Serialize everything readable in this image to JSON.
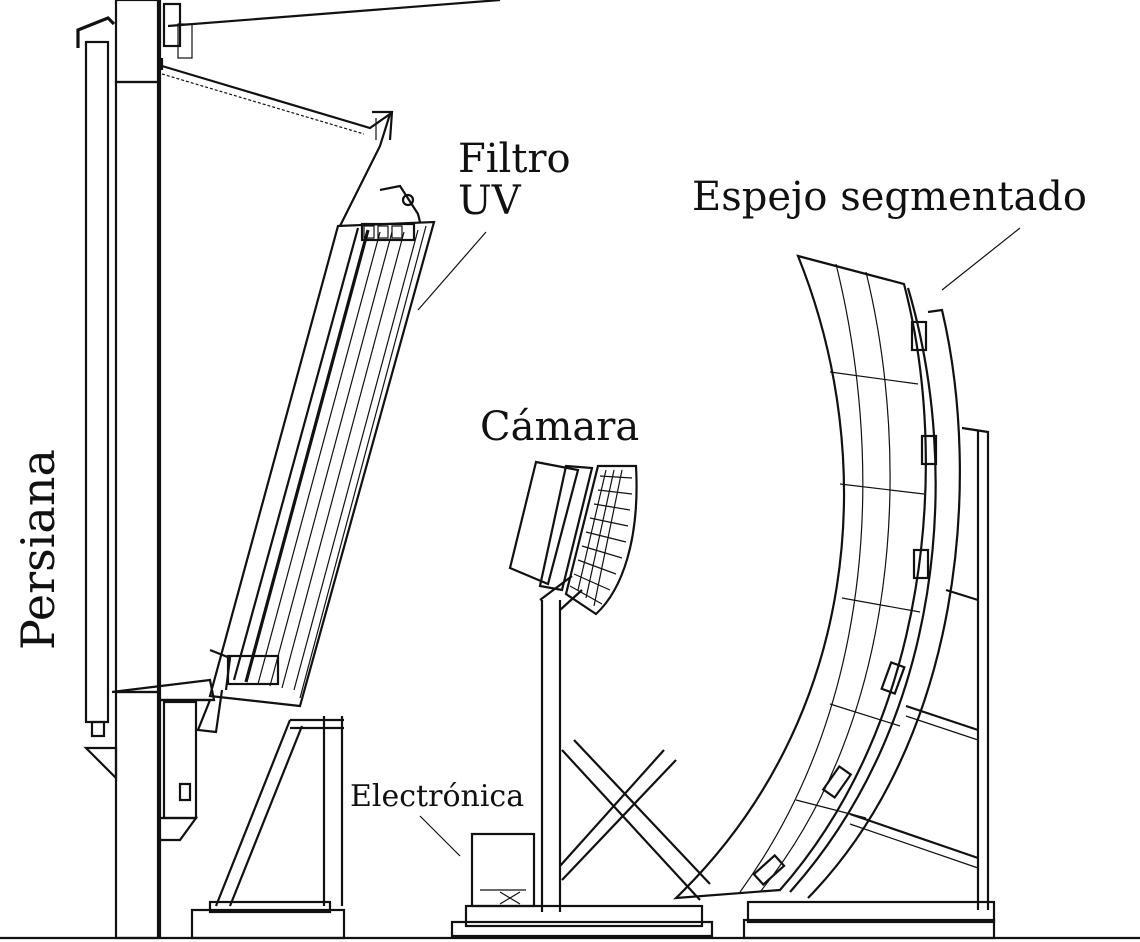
{
  "labels": {
    "persiana": "Persiana",
    "filtro_line1": "Filtro",
    "filtro_line2": "UV",
    "espejo": "Espejo segmentado",
    "camara": "Cámara",
    "electronica": "Electrónica"
  },
  "colors": {
    "ink": "#111111",
    "background": "#ffffff"
  }
}
